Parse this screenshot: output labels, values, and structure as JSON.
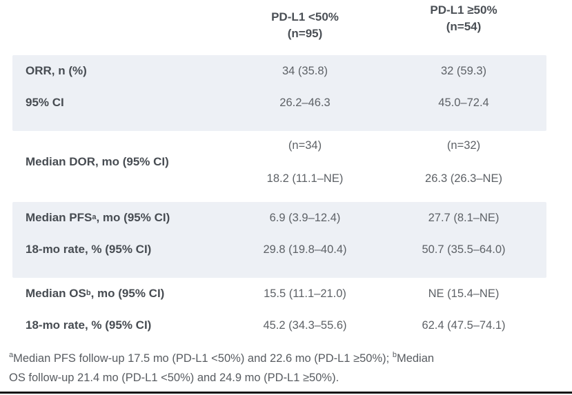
{
  "header": {
    "col_lt50": {
      "line1": "PD-L1 <50%",
      "line2": "(n=95)"
    },
    "col_ge50": {
      "line1": "PD-L1 ≥50%",
      "line2": "(n=54)"
    }
  },
  "groups": [
    {
      "kind": "rows",
      "shaded": true,
      "rows": [
        {
          "label": [
            {
              "t": "ORR, n (%)"
            }
          ],
          "values": [
            "34 (35.8)",
            "32 (59.3)"
          ]
        },
        {
          "label": [
            {
              "t": "95% CI"
            }
          ],
          "values": [
            "26.2–46.3",
            "45.0–72.4"
          ]
        }
      ]
    },
    {
      "kind": "merged",
      "shaded": false,
      "label": [
        {
          "t": "Median DOR, mo (95% CI)"
        }
      ],
      "sub": [
        "(n=34)",
        "(n=32)"
      ],
      "values": [
        "18.2 (11.1–NE)",
        "26.3 (26.3–NE)"
      ]
    },
    {
      "kind": "rows",
      "shaded": true,
      "rows": [
        {
          "label": [
            {
              "t": "Median PFS"
            },
            {
              "t": "a",
              "sup": true
            },
            {
              "t": ", mo (95% CI)"
            }
          ],
          "values": [
            "6.9 (3.9–12.4)",
            "27.7 (8.1–NE)"
          ]
        },
        {
          "label": [
            {
              "t": "18-mo rate, % (95% CI)"
            }
          ],
          "values": [
            "29.8 (19.8–40.4)",
            "50.7 (35.5–64.0)"
          ]
        }
      ]
    },
    {
      "kind": "rows",
      "shaded": false,
      "rows": [
        {
          "label": [
            {
              "t": "Median OS"
            },
            {
              "t": "b",
              "sup": true
            },
            {
              "t": ", mo (95% CI)"
            }
          ],
          "values": [
            "15.5 (11.1–21.0)",
            "NE (15.4–NE)"
          ]
        },
        {
          "label": [
            {
              "t": "18-mo rate, % (95% CI)"
            }
          ],
          "values": [
            "45.2 (34.3–55.6)",
            "62.4 (47.5–74.1)"
          ]
        }
      ]
    }
  ],
  "footnote_lines": [
    [
      {
        "t": "a",
        "sup": true
      },
      {
        "t": "Median PFS follow-up 17.5 mo (PD-L1 <50%) and 22.6 mo (PD-L1 ≥50%); "
      },
      {
        "t": "b",
        "sup": true
      },
      {
        "t": "Median"
      }
    ],
    [
      {
        "t": "OS follow-up 21.4 mo (PD-L1 <50%) and 24.9 mo (PD-L1 ≥50%)."
      }
    ]
  ],
  "colors": {
    "shaded_row_bg": "#edf0f5",
    "label_text": "#474c52",
    "value_text": "#5d6166",
    "footnote_text": "#575b60",
    "bottom_rule": "#0d0d0d"
  }
}
